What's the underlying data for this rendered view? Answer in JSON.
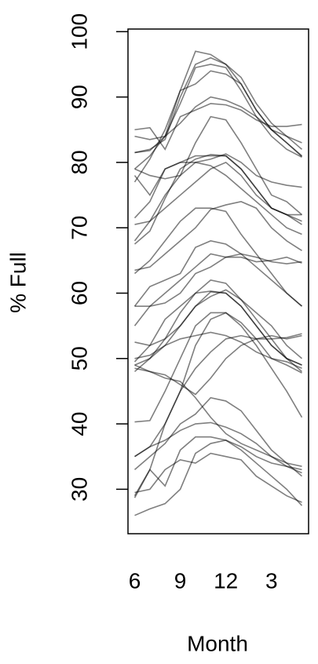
{
  "chart_data": {
    "type": "line",
    "xlabel": "Month",
    "ylabel": "% Full",
    "x": [
      6,
      7,
      8,
      9,
      10,
      11,
      12,
      13,
      14,
      15,
      16,
      17
    ],
    "xlim": [
      5.56,
      17.44
    ],
    "xticks": [
      6,
      9,
      12,
      {
        "value": 15,
        "label": "3"
      }
    ],
    "ylim": [
      23.2,
      100.4
    ],
    "yticks": [
      30,
      40,
      50,
      60,
      70,
      80,
      90,
      100
    ],
    "color": "rgba(0,0,0,0.5)",
    "series": [
      {
        "values": [
          81.5,
          81.8,
          84,
          91,
          97,
          96.5,
          95,
          92,
          88,
          85,
          83,
          81
        ]
      },
      {
        "values": [
          81.5,
          82,
          83.5,
          90,
          95,
          96,
          95,
          93,
          89,
          86,
          84,
          82
        ]
      },
      {
        "values": [
          79,
          81,
          84,
          89,
          94.5,
          95,
          94.5,
          91,
          87,
          84,
          82,
          80.8
        ]
      },
      {
        "values": [
          85,
          85.3,
          82,
          87,
          88,
          89,
          88.8,
          88,
          86.5,
          85.5,
          85.5,
          85.8
        ]
      },
      {
        "values": [
          84,
          83.5,
          84,
          86,
          88.5,
          90,
          89.5,
          88.5,
          87,
          85,
          84,
          83
        ]
      },
      {
        "values": [
          77,
          80.5,
          85,
          91,
          92,
          94,
          93.5,
          92,
          88,
          85,
          83,
          80.9
        ]
      },
      {
        "values": [
          79,
          78,
          77.5,
          78,
          83,
          87,
          86.5,
          83,
          79,
          75,
          74,
          72
        ]
      },
      {
        "values": [
          78,
          75,
          79,
          80,
          81,
          81,
          81,
          79,
          76,
          73,
          72,
          70.5
        ]
      },
      {
        "values": [
          71.5,
          74,
          79,
          80,
          80,
          79.5,
          78,
          76,
          74,
          72,
          70,
          69
        ]
      },
      {
        "values": [
          68,
          71,
          75,
          78,
          80,
          80.5,
          81.3,
          80,
          78,
          77,
          76.5,
          76.2
        ]
      },
      {
        "values": [
          67.5,
          69.5,
          74.5,
          79,
          80.5,
          81.2,
          81,
          79,
          76,
          73,
          72,
          71
        ]
      },
      {
        "values": [
          70.5,
          71,
          73,
          75,
          77,
          79,
          80,
          78,
          75,
          73,
          72,
          72
        ]
      },
      {
        "values": [
          63,
          65,
          68,
          71,
          73,
          73,
          72.5,
          69,
          66,
          63,
          60,
          58
        ]
      },
      {
        "values": [
          63.5,
          64,
          66,
          68,
          70,
          72.8,
          73.5,
          74,
          73,
          70,
          68,
          66.5
        ]
      },
      {
        "values": [
          58,
          61,
          62,
          63,
          67,
          68,
          67.5,
          66,
          64,
          62,
          60,
          58
        ]
      },
      {
        "values": [
          58,
          58,
          58.5,
          60,
          63,
          64,
          65.5,
          66,
          65.5,
          64.8,
          64.5,
          64.8
        ]
      },
      {
        "values": [
          55,
          58,
          60,
          62,
          64,
          66,
          65.5,
          65.5,
          64.8,
          65,
          65.5,
          64.6
        ]
      },
      {
        "values": [
          52.5,
          52,
          53,
          57,
          60,
          62,
          61.5,
          59,
          56,
          53,
          50,
          48
        ]
      },
      {
        "values": [
          49.5,
          52,
          56,
          58,
          60,
          60.3,
          60,
          58,
          55,
          52,
          50,
          49
        ]
      },
      {
        "values": [
          48,
          50,
          53,
          55,
          58,
          59.5,
          60.5,
          59,
          57,
          55,
          52,
          50
        ]
      },
      {
        "values": [
          49,
          50,
          52,
          53,
          53.5,
          54,
          53.5,
          52.5,
          51,
          50,
          49.5,
          48.5
        ]
      },
      {
        "values": [
          48.5,
          48,
          47.5,
          46,
          44.5,
          47,
          50,
          52,
          53,
          53.5,
          53,
          53.5
        ]
      },
      {
        "values": [
          50,
          50.5,
          52,
          55,
          58,
          60.2,
          60,
          58,
          55,
          52,
          50,
          49
        ]
      },
      {
        "values": [
          49,
          48,
          47,
          46.5,
          44,
          41,
          38.5,
          37,
          36,
          35,
          34,
          33.5
        ]
      },
      {
        "values": [
          40.3,
          40.5,
          45,
          50,
          55,
          57,
          57,
          55,
          52,
          48.5,
          45,
          41
        ]
      },
      {
        "values": [
          35,
          36.5,
          40,
          45,
          48.5,
          51,
          53,
          53.5,
          53,
          53,
          53.2,
          53.8
        ]
      },
      {
        "values": [
          35,
          36.5,
          37.5,
          39,
          40,
          40.2,
          39.5,
          38.5,
          37,
          35,
          33.5,
          32.5
        ]
      },
      {
        "values": [
          33,
          35,
          37,
          40,
          41.5,
          44,
          43.5,
          42,
          39,
          36,
          34,
          32
        ]
      },
      {
        "values": [
          29.5,
          30,
          33,
          34.5,
          34,
          35.5,
          35,
          34.5,
          32,
          30.5,
          29,
          28
        ]
      },
      {
        "values": [
          29,
          33,
          30.5,
          36,
          38,
          38,
          37.5,
          36.5,
          35,
          34,
          33.5,
          33
        ]
      },
      {
        "values": [
          26,
          27,
          27.8,
          30,
          35.5,
          37,
          37.5,
          36,
          34,
          32,
          30,
          27.5
        ]
      },
      {
        "values": [
          28.7,
          33,
          40,
          45,
          52,
          56,
          57,
          55.5,
          53,
          50,
          49,
          47.8
        ]
      }
    ]
  }
}
